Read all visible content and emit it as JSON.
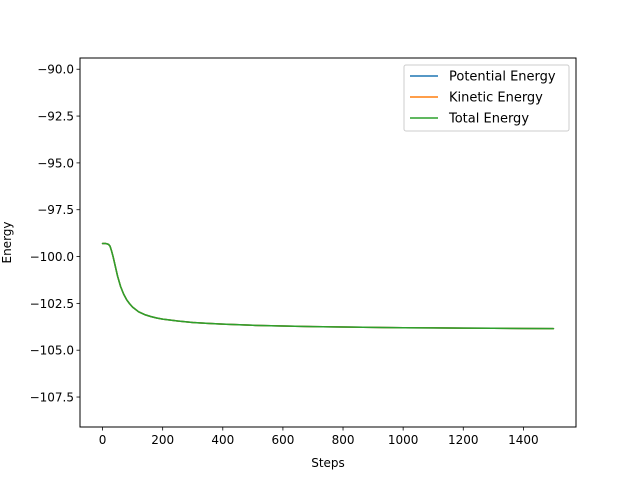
{
  "chart_data": {
    "type": "line",
    "title": "",
    "xlabel": "Steps",
    "ylabel": "Energy",
    "xlim": [
      -75,
      1575
    ],
    "ylim": [
      -109.1,
      -89.4
    ],
    "xticks": [
      0,
      200,
      400,
      600,
      800,
      1000,
      1200,
      1400
    ],
    "yticks": [
      -90.0,
      -92.5,
      -95.0,
      -97.5,
      -100.0,
      -102.5,
      -105.0,
      -107.5
    ],
    "xtick_labels": [
      "0",
      "200",
      "400",
      "600",
      "800",
      "1000",
      "1200",
      "1400"
    ],
    "ytick_labels": [
      "−90.0",
      "−92.5",
      "−95.0",
      "−97.5",
      "−100.0",
      "−102.5",
      "−105.0",
      "−107.5"
    ],
    "grid": false,
    "legend_position": "top-right",
    "x": [
      0,
      10,
      20,
      25,
      30,
      35,
      40,
      50,
      60,
      70,
      80,
      90,
      100,
      120,
      140,
      160,
      180,
      200,
      250,
      300,
      350,
      400,
      500,
      600,
      700,
      800,
      900,
      1000,
      1100,
      1200,
      1300,
      1400,
      1500
    ],
    "series": [
      {
        "name": "Potential Energy",
        "color": "#1f77b4",
        "values": [
          -99.3,
          -99.3,
          -99.35,
          -99.45,
          -99.7,
          -100.0,
          -100.35,
          -101.05,
          -101.6,
          -102.0,
          -102.3,
          -102.52,
          -102.7,
          -102.95,
          -103.1,
          -103.2,
          -103.28,
          -103.34,
          -103.44,
          -103.52,
          -103.57,
          -103.61,
          -103.67,
          -103.71,
          -103.74,
          -103.76,
          -103.78,
          -103.8,
          -103.81,
          -103.82,
          -103.83,
          -103.84,
          -103.85
        ]
      },
      {
        "name": "Kinetic Energy",
        "color": "#ff7f0e",
        "values": [
          -99.3,
          -99.3,
          -99.35,
          -99.45,
          -99.7,
          -100.0,
          -100.35,
          -101.05,
          -101.6,
          -102.0,
          -102.3,
          -102.52,
          -102.7,
          -102.95,
          -103.1,
          -103.2,
          -103.28,
          -103.34,
          -103.44,
          -103.52,
          -103.57,
          -103.61,
          -103.67,
          -103.71,
          -103.74,
          -103.76,
          -103.78,
          -103.8,
          -103.81,
          -103.82,
          -103.83,
          -103.84,
          -103.85
        ]
      },
      {
        "name": "Total Energy",
        "color": "#2ca02c",
        "values": [
          -99.3,
          -99.3,
          -99.35,
          -99.45,
          -99.7,
          -100.0,
          -100.35,
          -101.05,
          -101.6,
          -102.0,
          -102.3,
          -102.52,
          -102.7,
          -102.95,
          -103.1,
          -103.2,
          -103.28,
          -103.34,
          -103.44,
          -103.52,
          -103.57,
          -103.61,
          -103.67,
          -103.71,
          -103.74,
          -103.76,
          -103.78,
          -103.8,
          -103.81,
          -103.82,
          -103.83,
          -103.84,
          -103.85
        ]
      }
    ]
  }
}
